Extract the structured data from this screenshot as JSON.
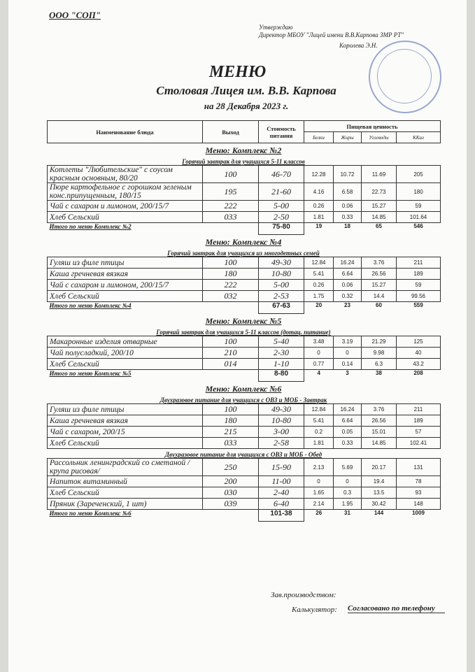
{
  "org": "ООО \"СОП\"",
  "approval": {
    "line1": "Утверждаю",
    "line2": "Директор МБОУ \"Лицей имени В.В.Карпова ЗМР РТ\"",
    "name": "Королева Э.Н."
  },
  "header": {
    "title": "МЕНЮ",
    "subtitle": "Столовая Лицея им. В.В. Карпова",
    "date": "на 28 Декабря 2023 г."
  },
  "table_header": {
    "name": "Наименование блюда",
    "output": "Выход",
    "cost": "Стоимость питания",
    "nutrition": "Пищевая ценность",
    "proteins": "Белки",
    "fats": "Жиры",
    "carbs": "Углеводы",
    "kcal": "ККал"
  },
  "sections": [
    {
      "heading": "Меню: Комплекс №2",
      "groups": [
        {
          "caption": "Горячий завтрак для учащихся 5-11 классов",
          "rows": [
            [
              "Котлеты \"Любительские\" с соусом красным основным, 80/20",
              "100",
              "46-70",
              12.28,
              10.72,
              11.69,
              205
            ],
            [
              "Пюре картофельное с горошком зеленым конс.припущенным, 180/15",
              "195",
              "21-60",
              4.16,
              6.58,
              22.73,
              180
            ],
            [
              "Чай с сахаром и лимоном, 200/15/7",
              "222",
              "5-00",
              0.26,
              0.06,
              15.27,
              59
            ],
            [
              "Хлеб Сельский",
              "033",
              "2-50",
              1.81,
              0.33,
              14.85,
              101.64
            ]
          ]
        }
      ],
      "total": [
        "Итого по меню Комплекс №2",
        "75-80",
        19,
        18,
        65,
        546
      ]
    },
    {
      "heading": "Меню: Комплекс №4",
      "groups": [
        {
          "caption": "Горячий завтрак для учащихся из многодетных семей",
          "rows": [
            [
              "Гуляш из филе птицы",
              "100",
              "49-30",
              12.84,
              16.24,
              3.76,
              211
            ],
            [
              "Каша гречневая вязкая",
              "180",
              "10-80",
              5.41,
              6.64,
              26.56,
              189
            ],
            [
              "Чай с сахаром и лимоном, 200/15/7",
              "222",
              "5-00",
              0.26,
              0.06,
              15.27,
              59
            ],
            [
              "Хлеб Сельский",
              "032",
              "2-53",
              1.75,
              0.32,
              14.4,
              99.56
            ]
          ]
        }
      ],
      "total": [
        "Итого по меню Комплекс №4",
        "67-63",
        20,
        23,
        60,
        559
      ]
    },
    {
      "heading": "Меню: Комплекс №5",
      "groups": [
        {
          "caption": "Горячий завтрак для учащихся 5-11 классов (дотац. питание)",
          "rows": [
            [
              "Макаронные изделия отварные",
              "100",
              "5-40",
              3.48,
              3.19,
              21.29,
              125
            ],
            [
              "Чай полусладкий, 200/10",
              "210",
              "2-30",
              0,
              0,
              9.98,
              40
            ],
            [
              "Хлеб Сельский",
              "014",
              "1-10",
              0.77,
              0.14,
              6.3,
              43.2
            ]
          ]
        }
      ],
      "total": [
        "Итого по меню Комплекс №5",
        "8-80",
        4,
        3,
        38,
        208
      ]
    },
    {
      "heading": "Меню: Комплекс №6",
      "groups": [
        {
          "caption": "Двухразовое питание для учащихся с ОВЗ и МОБ - Завтрак",
          "rows": [
            [
              "Гуляш из филе птицы",
              "100",
              "49-30",
              12.84,
              16.24,
              3.76,
              211
            ],
            [
              "Каша гречневая вязкая",
              "180",
              "10-80",
              5.41,
              6.64,
              26.56,
              189
            ],
            [
              "Чай с сахаром, 200/15",
              "215",
              "3-00",
              0.2,
              0.05,
              15.01,
              57
            ],
            [
              "Хлеб Сельский",
              "033",
              "2-58",
              1.81,
              0.33,
              14.85,
              102.41
            ]
          ]
        },
        {
          "caption": "Двухразовое питание для учащихся с ОВЗ и МОБ - Обед",
          "rows": [
            [
              "Рассольник ленинградский со сметаной /крупа рисовая/",
              "250",
              "15-90",
              2.13,
              5.69,
              20.17,
              131
            ],
            [
              "Напиток витаминный",
              "200",
              "11-00",
              0,
              0,
              19.4,
              78
            ],
            [
              "Хлеб Сельский",
              "030",
              "2-40",
              1.65,
              0.3,
              13.5,
              93
            ],
            [
              "Пряник (Зареченский, 1 шт)",
              "039",
              "6-40",
              2.14,
              1.95,
              30.42,
              148
            ]
          ]
        }
      ],
      "total": [
        "Итого по меню Комплекс №6",
        "101-38",
        26,
        31,
        144,
        1009
      ]
    }
  ],
  "footer": {
    "production": "Зав.производством:",
    "calculator": "Калькулятор:",
    "agreed": "Согласовано по телефону"
  }
}
